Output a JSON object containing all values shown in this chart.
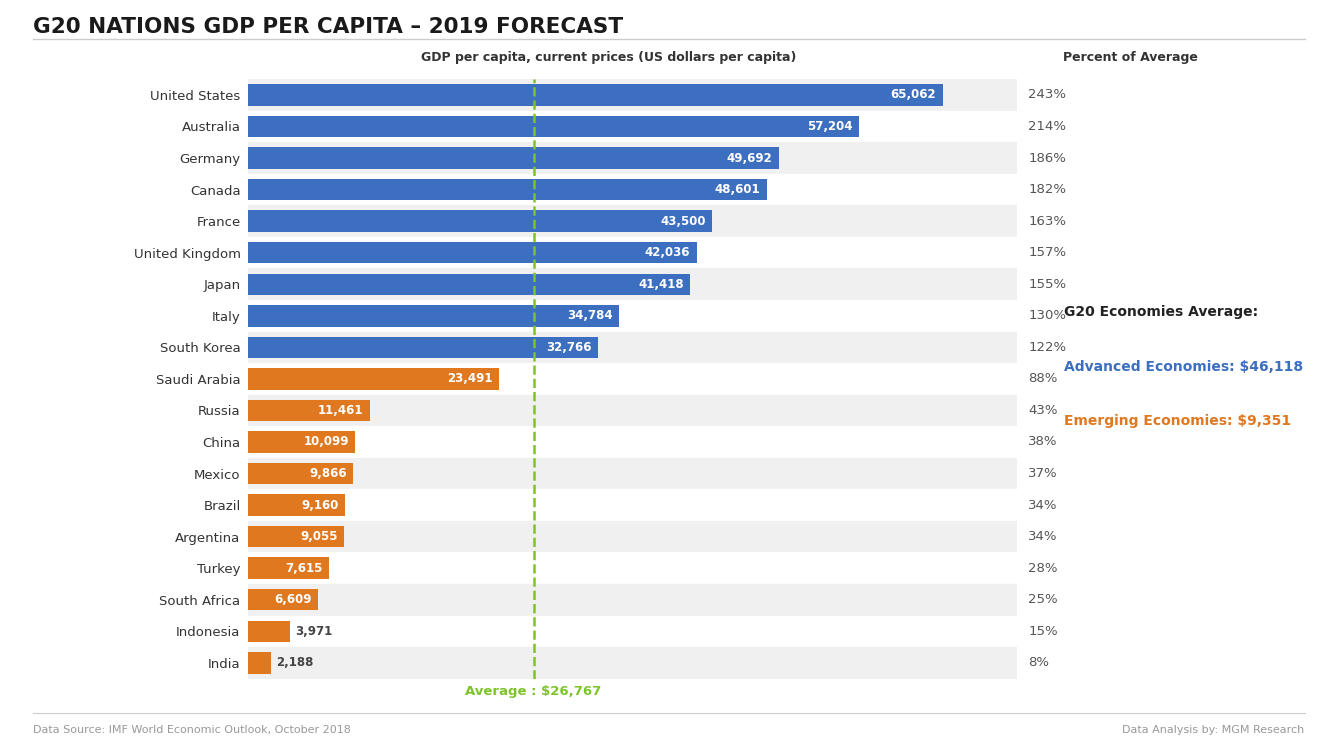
{
  "title": "G20 NATIONS GDP PER CAPITA – 2019 FORECAST",
  "col_header_gdp": "GDP per capita, current prices (US dollars per capita)",
  "col_header_pct": "Percent of Average",
  "countries": [
    "United States",
    "Australia",
    "Germany",
    "Canada",
    "France",
    "United Kingdom",
    "Japan",
    "Italy",
    "South Korea",
    "Saudi Arabia",
    "Russia",
    "China",
    "Mexico",
    "Brazil",
    "Argentina",
    "Turkey",
    "South Africa",
    "Indonesia",
    "India"
  ],
  "values": [
    65062,
    57204,
    49692,
    48601,
    43500,
    42036,
    41418,
    34784,
    32766,
    23491,
    11461,
    10099,
    9866,
    9160,
    9055,
    7615,
    6609,
    3971,
    2188
  ],
  "percents": [
    "243%",
    "214%",
    "186%",
    "182%",
    "163%",
    "157%",
    "155%",
    "130%",
    "122%",
    "88%",
    "43%",
    "38%",
    "37%",
    "34%",
    "34%",
    "28%",
    "25%",
    "15%",
    "8%"
  ],
  "bar_colors": [
    "#3C6FBF",
    "#3C6FBF",
    "#3C6FBF",
    "#3C6FBF",
    "#3C6FBF",
    "#3C6FBF",
    "#3C6FBF",
    "#3C6FBF",
    "#3C6FBF",
    "#E07820",
    "#E07820",
    "#E07820",
    "#E07820",
    "#E07820",
    "#E07820",
    "#E07820",
    "#E07820",
    "#E07820",
    "#E07820"
  ],
  "average_value": 26767,
  "average_label": "Average : $26,767",
  "advanced_avg": 46118,
  "emerging_avg": 9351,
  "legend_title": "G20 Economies Average:",
  "legend_advanced_label": "Advanced Economies: $46,118",
  "legend_emerging_label": "Emerging Economies: $9,351",
  "advanced_color": "#3C6FBF",
  "emerging_color": "#E07820",
  "avg_line_color": "#7DC42A",
  "footer_left": "Data Source: IMF World Economic Outlook, October 2018",
  "footer_right": "Data Analysis by: MGM Research",
  "background_color": "#FFFFFF",
  "row_alt_color": "#F0F0F0",
  "row_base_color": "#FFFFFF",
  "xlim": [
    0,
    72000
  ]
}
